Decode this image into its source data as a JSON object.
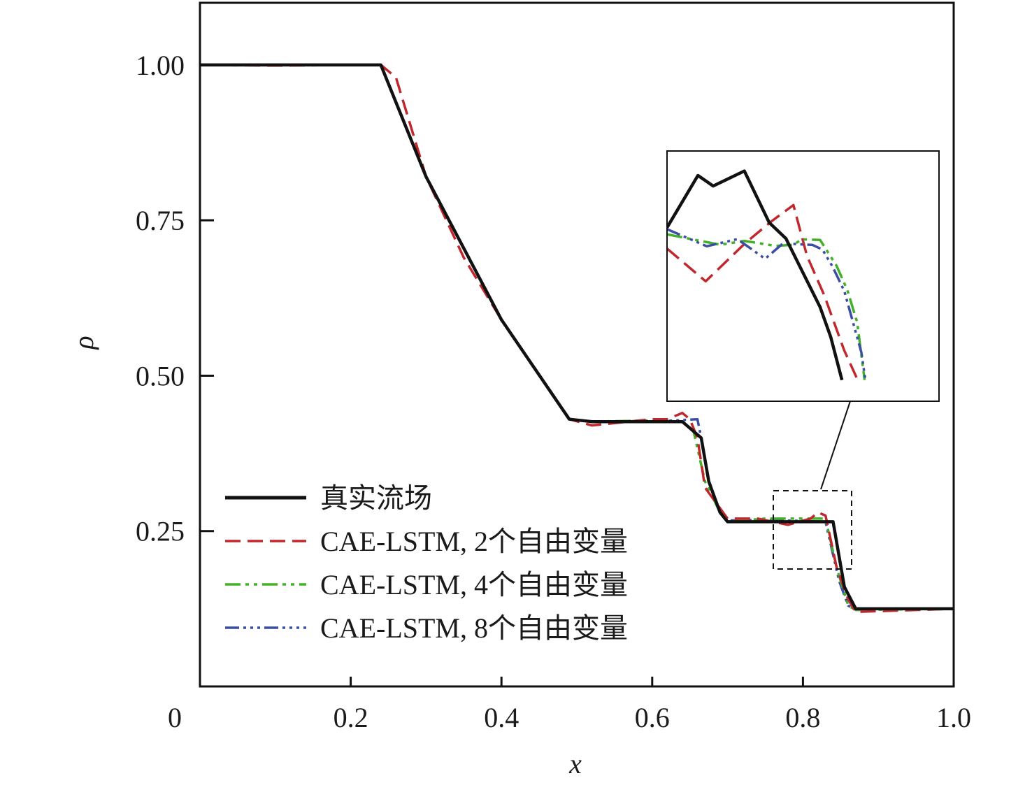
{
  "chart_data": {
    "type": "line",
    "title": "",
    "xlabel": "x",
    "ylabel": "ρ",
    "xlim": [
      0,
      1.0
    ],
    "ylim": [
      0,
      1.1
    ],
    "xticks": [
      "0",
      "0.2",
      "0.4",
      "0.6",
      "0.8",
      "1.0"
    ],
    "xtick_values": [
      0,
      0.2,
      0.4,
      0.6,
      0.8,
      1.0
    ],
    "yticks": [
      "0.25",
      "0.50",
      "0.75",
      "1.00"
    ],
    "ytick_values": [
      0.25,
      0.5,
      0.75,
      1.0
    ],
    "grid": false,
    "legend_position": "lower-left",
    "series": [
      {
        "name": "真实流场",
        "color": "#111111",
        "dash": "solid",
        "x": [
          0,
          0.24,
          0.3,
          0.4,
          0.49,
          0.52,
          0.64,
          0.665,
          0.675,
          0.69,
          0.7,
          0.74,
          0.84,
          0.855,
          0.87,
          1.0
        ],
        "y": [
          1.0,
          1.0,
          0.82,
          0.59,
          0.43,
          0.426,
          0.426,
          0.4,
          0.33,
          0.28,
          0.265,
          0.265,
          0.265,
          0.16,
          0.125,
          0.125
        ]
      },
      {
        "name": "CAE-LSTM, 2个自由变量",
        "color": "#c0282d",
        "dash": "dashed",
        "x": [
          0,
          0.1,
          0.2,
          0.24,
          0.26,
          0.3,
          0.35,
          0.4,
          0.49,
          0.52,
          0.6,
          0.62,
          0.64,
          0.65,
          0.66,
          0.67,
          0.7,
          0.74,
          0.78,
          0.81,
          0.82,
          0.83,
          0.845,
          0.86,
          0.87,
          1.0
        ],
        "y": [
          1.0,
          0.999,
          1.0,
          1.0,
          0.98,
          0.82,
          0.69,
          0.59,
          0.43,
          0.42,
          0.43,
          0.43,
          0.44,
          0.43,
          0.4,
          0.32,
          0.27,
          0.27,
          0.26,
          0.27,
          0.28,
          0.275,
          0.19,
          0.14,
          0.12,
          0.125
        ]
      },
      {
        "name": "CAE-LSTM, 4个自由变量",
        "color": "#43b02a",
        "dash": "dashdotdot",
        "x": [
          0,
          0.24,
          0.3,
          0.4,
          0.49,
          0.52,
          0.6,
          0.64,
          0.655,
          0.67,
          0.69,
          0.7,
          0.75,
          0.83,
          0.845,
          0.86,
          0.87,
          1.0
        ],
        "y": [
          1.0,
          1.0,
          0.82,
          0.59,
          0.43,
          0.426,
          0.428,
          0.426,
          0.41,
          0.33,
          0.28,
          0.265,
          0.27,
          0.27,
          0.19,
          0.13,
          0.123,
          0.125
        ]
      },
      {
        "name": "CAE-LSTM, 8个自由变量",
        "color": "#3a4fa3",
        "dash": "dashdotdotdot",
        "x": [
          0,
          0.24,
          0.3,
          0.4,
          0.49,
          0.52,
          0.6,
          0.66,
          0.665,
          0.675,
          0.69,
          0.7,
          0.75,
          0.83,
          0.848,
          0.86,
          0.87,
          1.0
        ],
        "y": [
          1.0,
          1.0,
          0.82,
          0.59,
          0.43,
          0.426,
          0.426,
          0.43,
          0.4,
          0.33,
          0.28,
          0.267,
          0.268,
          0.265,
          0.17,
          0.13,
          0.124,
          0.125
        ]
      }
    ],
    "inset": {
      "xlim": [
        0.768,
        0.87
      ],
      "ylim": [
        0.19,
        0.32
      ],
      "series": [
        {
          "x": [
            0.768,
            0.7796,
            0.7853,
            0.797,
            0.8063,
            0.8126,
            0.8187,
            0.8254,
            0.8294,
            0.8336
          ],
          "y": [
            0.2802,
            0.3073,
            0.3018,
            0.3096,
            0.2828,
            0.2745,
            0.2575,
            0.2389,
            0.2233,
            0.201
          ]
        },
        {
          "x": [
            0.768,
            0.7825,
            0.7974,
            0.8072,
            0.8154,
            0.8205,
            0.8269,
            0.8344,
            0.8395
          ],
          "y": [
            0.2693,
            0.2523,
            0.2722,
            0.2835,
            0.2919,
            0.2655,
            0.2453,
            0.2166,
            0.201
          ]
        },
        {
          "x": [
            0.768,
            0.7879,
            0.797,
            0.8087,
            0.8154,
            0.8185,
            0.8254,
            0.8316,
            0.8356,
            0.8393,
            0.8421
          ],
          "y": [
            0.2767,
            0.2713,
            0.2733,
            0.2707,
            0.2713,
            0.2741,
            0.2738,
            0.2603,
            0.2478,
            0.2311,
            0.201
          ]
        },
        {
          "x": [
            0.768,
            0.7829,
            0.7944,
            0.8048,
            0.8115,
            0.8226,
            0.8263,
            0.8301,
            0.8345,
            0.8409,
            0.8424
          ],
          "y": [
            0.2794,
            0.2705,
            0.2742,
            0.264,
            0.272,
            0.2712,
            0.2688,
            0.2599,
            0.2472,
            0.2153,
            0.201
          ]
        }
      ]
    }
  }
}
